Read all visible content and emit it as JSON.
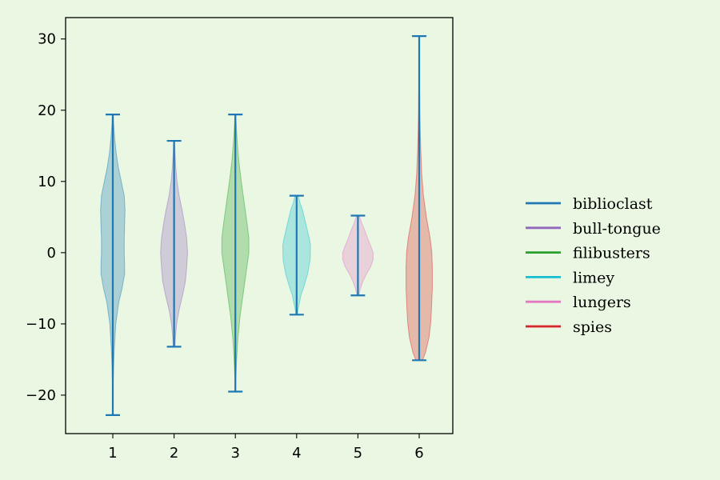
{
  "chart_data": {
    "type": "violin",
    "title": "",
    "xlabel": "",
    "ylabel": "",
    "categories": [
      "1",
      "2",
      "3",
      "4",
      "5",
      "6"
    ],
    "ylim": [
      -25.4,
      33
    ],
    "yticks": [
      -20,
      -10,
      0,
      10,
      20,
      30
    ],
    "ytick_labels": [
      "−20",
      "−10",
      "0",
      "10",
      "20",
      "30"
    ],
    "grid": false,
    "legend_position": "right",
    "whisker_color": "#1f77b4",
    "background": "#eaf8e3",
    "series": [
      {
        "name": "biblioclast",
        "line_color": "#1f77b4",
        "fill": "#1f77b4",
        "min": -22.8,
        "max": 19.4,
        "profile": [
          [
            -22.8,
            0.003
          ],
          [
            -18,
            0.01
          ],
          [
            -14,
            0.03
          ],
          [
            -10,
            0.07
          ],
          [
            -7,
            0.14
          ],
          [
            -5,
            0.22
          ],
          [
            -3,
            0.28
          ],
          [
            -2,
            0.28
          ],
          [
            0,
            0.27
          ],
          [
            2,
            0.27
          ],
          [
            4,
            0.28
          ],
          [
            6,
            0.29
          ],
          [
            8,
            0.27
          ],
          [
            10,
            0.2
          ],
          [
            12,
            0.13
          ],
          [
            14,
            0.08
          ],
          [
            16,
            0.045
          ],
          [
            18,
            0.02
          ],
          [
            19.4,
            0.01
          ]
        ]
      },
      {
        "name": "bull-tongue",
        "line_color": "#9467bd",
        "fill": "#9467bd",
        "min": -13.2,
        "max": 15.7,
        "profile": [
          [
            -13.2,
            0.02
          ],
          [
            -12,
            0.03
          ],
          [
            -10,
            0.06
          ],
          [
            -8,
            0.12
          ],
          [
            -6,
            0.2
          ],
          [
            -4,
            0.27
          ],
          [
            -2,
            0.3
          ],
          [
            0,
            0.32
          ],
          [
            2,
            0.3
          ],
          [
            4,
            0.25
          ],
          [
            6,
            0.19
          ],
          [
            8,
            0.12
          ],
          [
            10,
            0.07
          ],
          [
            12,
            0.04
          ],
          [
            14,
            0.02
          ],
          [
            15.7,
            0.01
          ]
        ]
      },
      {
        "name": "filibusters",
        "line_color": "#2ca02c",
        "fill": "#2ca02c",
        "min": -19.5,
        "max": 19.4,
        "profile": [
          [
            -19.5,
            0.005
          ],
          [
            -18,
            0.01
          ],
          [
            -15,
            0.03
          ],
          [
            -12,
            0.06
          ],
          [
            -9,
            0.11
          ],
          [
            -6,
            0.18
          ],
          [
            -3,
            0.25
          ],
          [
            0,
            0.32
          ],
          [
            2,
            0.32
          ],
          [
            4,
            0.28
          ],
          [
            7,
            0.21
          ],
          [
            10,
            0.14
          ],
          [
            13,
            0.08
          ],
          [
            16,
            0.04
          ],
          [
            18,
            0.02
          ],
          [
            19.4,
            0.01
          ]
        ]
      },
      {
        "name": "limey",
        "line_color": "#17becf",
        "fill": "#17becf",
        "min": -8.7,
        "max": 8.0,
        "profile": [
          [
            -8.7,
            0.02
          ],
          [
            -8,
            0.035
          ],
          [
            -6,
            0.1
          ],
          [
            -5,
            0.16
          ],
          [
            -3,
            0.26
          ],
          [
            -1,
            0.32
          ],
          [
            1,
            0.33
          ],
          [
            2,
            0.3
          ],
          [
            4,
            0.22
          ],
          [
            6,
            0.14
          ],
          [
            7,
            0.08
          ],
          [
            8,
            0.04
          ]
        ]
      },
      {
        "name": "lungers",
        "line_color": "#e377c2",
        "fill": "#e377c2",
        "min": -6.0,
        "max": 5.2,
        "profile": [
          [
            -6,
            0.02
          ],
          [
            -5,
            0.06
          ],
          [
            -4,
            0.12
          ],
          [
            -3,
            0.2
          ],
          [
            -2,
            0.3
          ],
          [
            -1,
            0.36
          ],
          [
            0,
            0.36
          ],
          [
            1,
            0.3
          ],
          [
            2,
            0.23
          ],
          [
            3,
            0.17
          ],
          [
            4,
            0.1
          ],
          [
            5.2,
            0.03
          ]
        ]
      },
      {
        "name": "spies",
        "line_color": "#d62728",
        "fill": "#d62728",
        "min": -15.1,
        "max": 30.4,
        "profile": [
          [
            -15.1,
            0.08
          ],
          [
            -14,
            0.15
          ],
          [
            -12,
            0.23
          ],
          [
            -10,
            0.27
          ],
          [
            -8,
            0.29
          ],
          [
            -5,
            0.31
          ],
          [
            -2,
            0.31
          ],
          [
            0,
            0.3
          ],
          [
            2,
            0.26
          ],
          [
            5,
            0.17
          ],
          [
            8,
            0.1
          ],
          [
            11,
            0.06
          ],
          [
            14,
            0.04
          ],
          [
            17,
            0.025
          ],
          [
            20,
            0.015
          ],
          [
            24,
            0.008
          ],
          [
            28,
            0.004
          ],
          [
            30.4,
            0.002
          ]
        ]
      }
    ]
  }
}
